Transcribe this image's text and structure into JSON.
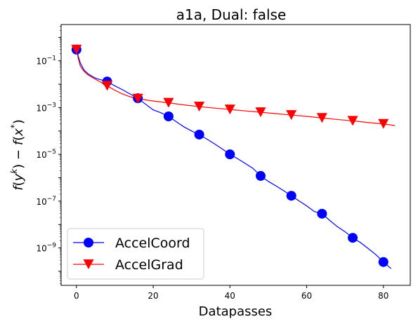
{
  "chart_data": {
    "type": "line",
    "title": "a1a, Dual: false",
    "xlabel": "Datapasses",
    "ylabel": "f(y^k) − f(x*)",
    "yscale": "log",
    "xlim": [
      -4,
      87
    ],
    "ylim_exp": [
      -10.6,
      0.55
    ],
    "x_ticks": [
      0,
      20,
      40,
      60,
      80
    ],
    "x_tick_labels": [
      "0",
      "20",
      "40",
      "60",
      "80"
    ],
    "y_ticks_exp": [
      -9,
      -7,
      -5,
      -3,
      -1
    ],
    "y_tick_labels": [
      {
        "base": "10",
        "exp": "−9"
      },
      {
        "base": "10",
        "exp": "−7"
      },
      {
        "base": "10",
        "exp": "−5"
      },
      {
        "base": "10",
        "exp": "−3"
      },
      {
        "base": "10",
        "exp": "−1"
      }
    ],
    "legend_position": "lower-left",
    "series": [
      {
        "name": "AccelCoord",
        "color": "#0000ff",
        "marker": "circle",
        "line": {
          "x": [
            0,
            0.5,
            1,
            2,
            3,
            4,
            5,
            6,
            7,
            8,
            10,
            12,
            14,
            16,
            18,
            20,
            22,
            24,
            26,
            28,
            30,
            32,
            34,
            36,
            38,
            40,
            42,
            44,
            46,
            48,
            50,
            52,
            54,
            56,
            58,
            60,
            62,
            64,
            66,
            68,
            70,
            72,
            74,
            76,
            78,
            80,
            82
          ],
          "y": [
            0.3,
            0.15,
            0.08,
            0.04,
            0.028,
            0.022,
            0.018,
            0.016,
            0.0145,
            0.013,
            0.0085,
            0.0058,
            0.0038,
            0.0025,
            0.0014,
            0.0008,
            0.0006,
            0.00042,
            0.00025,
            0.00015,
            0.0001,
            7e-05,
            4.5e-05,
            2.8e-05,
            1.7e-05,
            1e-05,
            6.5e-06,
            4.1e-06,
            2.5e-06,
            1.2e-06,
            7e-07,
            4.5e-07,
            2.8e-07,
            1.7e-07,
            1.03e-07,
            6.3e-08,
            3.6e-08,
            2.9e-08,
            1.5e-08,
            8.1e-09,
            4.9e-09,
            2.7e-09,
            1.7e-09,
            9.5e-10,
            5.2e-10,
            2.5e-10,
            1.3e-10
          ]
        },
        "markers": {
          "x": [
            0,
            8,
            16,
            24,
            32,
            40,
            48,
            56,
            64,
            72,
            80
          ],
          "y": [
            0.3,
            0.013,
            0.0025,
            0.00042,
            7e-05,
            1e-05,
            1.2e-06,
            1.7e-07,
            2.9e-08,
            2.7e-09,
            2.5e-10
          ]
        }
      },
      {
        "name": "AccelGrad",
        "color": "#ff0000",
        "marker": "triangle-down",
        "line": {
          "x": [
            0,
            0.5,
            1,
            2,
            3,
            4,
            5,
            6,
            8,
            10,
            12,
            14,
            16,
            20,
            24,
            28,
            32,
            36,
            40,
            44,
            48,
            52,
            56,
            60,
            64,
            68,
            72,
            76,
            80,
            83
          ],
          "y": [
            0.3,
            0.12,
            0.06,
            0.035,
            0.025,
            0.02,
            0.016,
            0.013,
            0.0085,
            0.0055,
            0.0038,
            0.0029,
            0.0024,
            0.0019,
            0.0016,
            0.0013,
            0.0011,
            0.00095,
            0.00083,
            0.00072,
            0.00063,
            0.00055,
            0.00048,
            0.00042,
            0.00036,
            0.00031,
            0.00027,
            0.00023,
            0.0002,
            0.00017
          ]
        },
        "markers": {
          "x": [
            0,
            8,
            16,
            24,
            32,
            40,
            48,
            56,
            64,
            72,
            80
          ],
          "y": [
            0.3,
            0.0085,
            0.0024,
            0.0016,
            0.0011,
            0.00083,
            0.00063,
            0.00048,
            0.00036,
            0.00027,
            0.0002
          ]
        }
      }
    ]
  }
}
